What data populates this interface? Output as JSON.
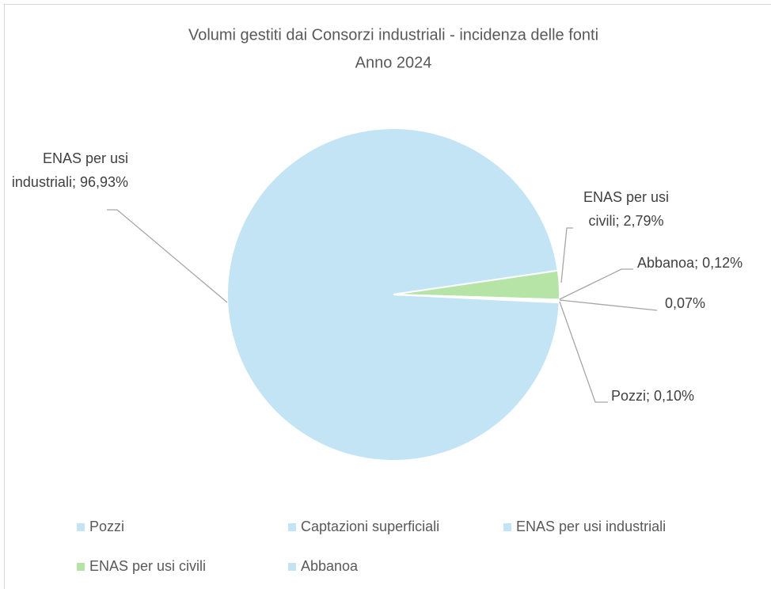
{
  "chart_data": {
    "type": "pie",
    "title": "Volumi gestiti dai Consorzi industriali - incidenza delle fonti",
    "subtitle": "Anno 2024",
    "categories": [
      "Pozzi",
      "Captazioni superficiali",
      "ENAS per usi industriali",
      "ENAS per usi civili",
      "Abbanoa"
    ],
    "values": [
      0.1,
      0.07,
      96.93,
      2.79,
      0.12
    ],
    "value_labels": [
      "Pozzi; 0,10%",
      "0,07%",
      "ENAS per usi industriali; 96,93%",
      "ENAS per usi civili; 2,79%",
      "Abbanoa; 0,12%"
    ],
    "colors": [
      "#c3e4f5",
      "#c3e4f5",
      "#c3e4f5",
      "#b5e4a6",
      "#c3e4f5"
    ],
    "legend": "bottom"
  }
}
